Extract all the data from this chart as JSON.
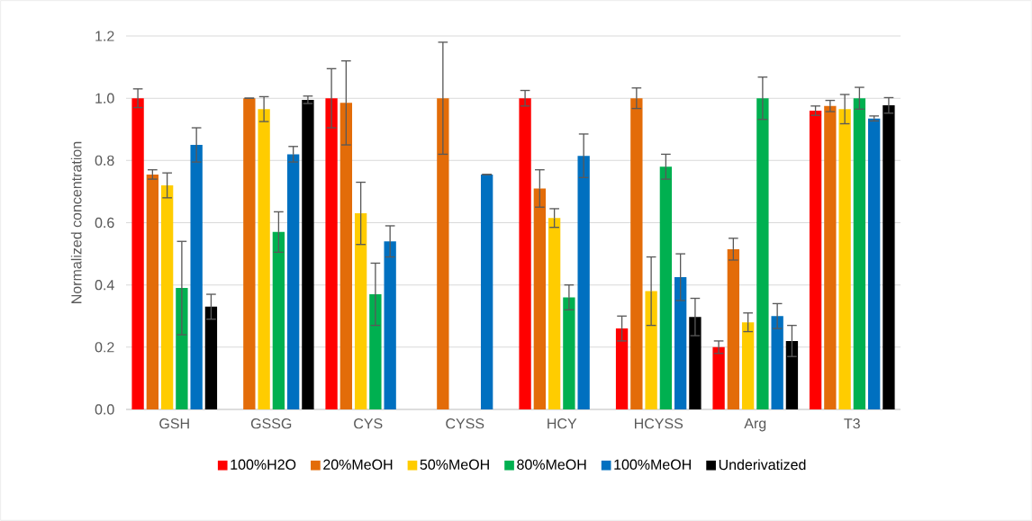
{
  "chart_data": {
    "type": "bar",
    "ylabel": "Normalized concentration",
    "categories": [
      "GSH",
      "GSSG",
      "CYS",
      "CYSS",
      "HCY",
      "HCYSS",
      "Arg",
      "T3"
    ],
    "ylim": [
      0,
      1.2
    ],
    "yticks": [
      {
        "value": 0,
        "label": "0.0"
      },
      {
        "value": 0.2,
        "label": "0.2"
      },
      {
        "value": 0.4,
        "label": "0.4"
      },
      {
        "value": 0.6,
        "label": "0.6"
      },
      {
        "value": 0.8,
        "label": "0.8"
      },
      {
        "value": 1.0,
        "label": "1.0"
      },
      {
        "value": 1.2,
        "label": "1.2"
      }
    ],
    "grid": "y",
    "legend": "bottom",
    "series": [
      {
        "name": "100%H2O",
        "color": "#ff0000",
        "values": [
          1.0,
          null,
          1.0,
          null,
          1.0,
          0.26,
          0.2,
          0.96
        ],
        "errors": [
          0.03,
          null,
          0.095,
          null,
          0.025,
          0.04,
          0.02,
          0.015
        ]
      },
      {
        "name": "20%MeOH",
        "color": "#e36c09",
        "values": [
          0.755,
          1.0,
          0.985,
          1.0,
          0.71,
          1.0,
          0.515,
          0.975
        ],
        "errors": [
          0.015,
          0.0,
          0.135,
          0.18,
          0.06,
          0.033,
          0.035,
          0.018
        ]
      },
      {
        "name": "50%MeOH",
        "color": "#ffcc00",
        "values": [
          0.72,
          0.965,
          0.63,
          null,
          0.615,
          0.38,
          0.28,
          0.965
        ],
        "errors": [
          0.04,
          0.04,
          0.1,
          null,
          0.03,
          0.11,
          0.03,
          0.047
        ]
      },
      {
        "name": "80%MeOH",
        "color": "#00b050",
        "values": [
          0.39,
          0.57,
          0.37,
          null,
          0.36,
          0.78,
          1.0,
          1.0
        ],
        "errors": [
          0.15,
          0.065,
          0.1,
          null,
          0.04,
          0.04,
          0.068,
          0.035
        ]
      },
      {
        "name": "100%MeOH",
        "color": "#0070c0",
        "values": [
          0.85,
          0.82,
          0.54,
          0.755,
          0.815,
          0.425,
          0.3,
          0.935
        ],
        "errors": [
          0.055,
          0.025,
          0.05,
          0.0,
          0.07,
          0.075,
          0.04,
          0.008
        ]
      },
      {
        "name": "Underivatized",
        "color": "#000000",
        "values": [
          0.33,
          0.995,
          null,
          null,
          null,
          0.297,
          0.22,
          0.977
        ],
        "errors": [
          0.04,
          0.012,
          null,
          null,
          null,
          0.06,
          0.05,
          0.025
        ]
      }
    ]
  }
}
